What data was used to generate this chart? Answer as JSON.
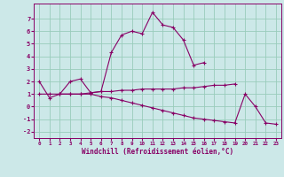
{
  "xlabel": "Windchill (Refroidissement éolien,°C)",
  "background_color": "#cce8e8",
  "grid_color": "#99ccbb",
  "line_color": "#880066",
  "x": [
    0,
    1,
    2,
    3,
    4,
    5,
    6,
    7,
    8,
    9,
    10,
    11,
    12,
    13,
    14,
    15,
    16,
    17,
    18,
    19,
    20,
    21,
    22,
    23
  ],
  "line1": [
    2.0,
    0.7,
    1.0,
    2.0,
    2.2,
    1.1,
    1.2,
    4.3,
    5.7,
    6.0,
    5.8,
    7.5,
    6.5,
    6.3,
    5.3,
    3.3,
    3.5,
    null,
    null,
    null,
    null,
    null,
    null,
    null
  ],
  "line2": [
    null,
    null,
    1.0,
    1.0,
    1.0,
    1.1,
    1.2,
    1.2,
    1.3,
    1.3,
    1.4,
    1.4,
    1.4,
    1.4,
    1.5,
    1.5,
    1.6,
    1.7,
    1.7,
    1.8,
    null,
    null,
    null,
    null
  ],
  "line3": [
    1.0,
    1.0,
    1.0,
    1.0,
    1.0,
    1.0,
    0.8,
    0.7,
    0.5,
    0.3,
    0.1,
    -0.1,
    -0.3,
    -0.5,
    -0.7,
    -0.9,
    -1.0,
    -1.1,
    -1.2,
    -1.3,
    1.0,
    -0.0,
    -1.3,
    -1.4
  ],
  "ylim": [
    -2.5,
    8.2
  ],
  "xlim": [
    -0.5,
    23.5
  ],
  "yticks": [
    -2,
    -1,
    0,
    1,
    2,
    3,
    4,
    5,
    6,
    7
  ],
  "xticks": [
    0,
    1,
    2,
    3,
    4,
    5,
    6,
    7,
    8,
    9,
    10,
    11,
    12,
    13,
    14,
    15,
    16,
    17,
    18,
    19,
    20,
    21,
    22,
    23
  ]
}
